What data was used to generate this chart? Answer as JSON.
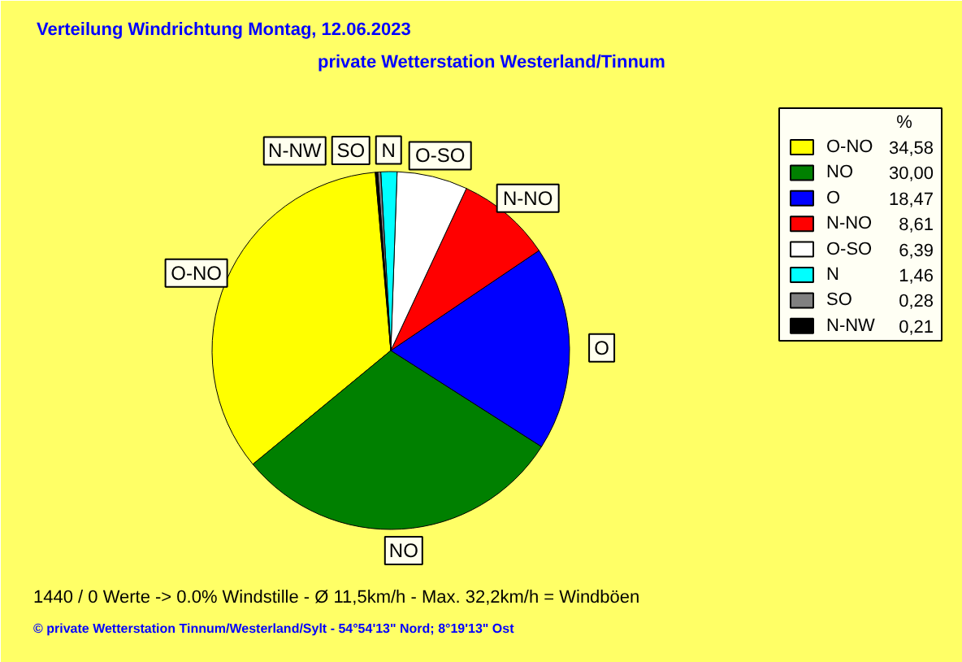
{
  "chart_data": {
    "type": "pie",
    "title": "Verteilung Windrichtung   Montag, 12.06.2023",
    "subtitle": "private Wetterstation Westerland/Tinnum",
    "categories": [
      "O-NO",
      "NO",
      "O",
      "N-NO",
      "O-SO",
      "N",
      "SO",
      "N-NW"
    ],
    "values": [
      34.58,
      30.0,
      18.47,
      8.61,
      6.39,
      1.46,
      0.28,
      0.21
    ],
    "value_labels": [
      "34,58",
      "30,00",
      "18,47",
      "8,61",
      "6,39",
      "1,46",
      "0,28",
      "0,21"
    ],
    "colors": [
      "#ffff00",
      "#008000",
      "#0000ff",
      "#ff0000",
      "#ffffff",
      "#00ffff",
      "#808080",
      "#000000"
    ],
    "legend_title": "%",
    "legend": "right",
    "annotations": [
      "1440 / 0 Werte  -> 0.0% Windstille   -   Ø 11,5km/h  -  Max. 32,2km/h = Windböen",
      "© private Wetterstation Tinnum/Westerland/Sylt   -   54°54'13\" Nord; 8°19'13\" Ost"
    ]
  }
}
